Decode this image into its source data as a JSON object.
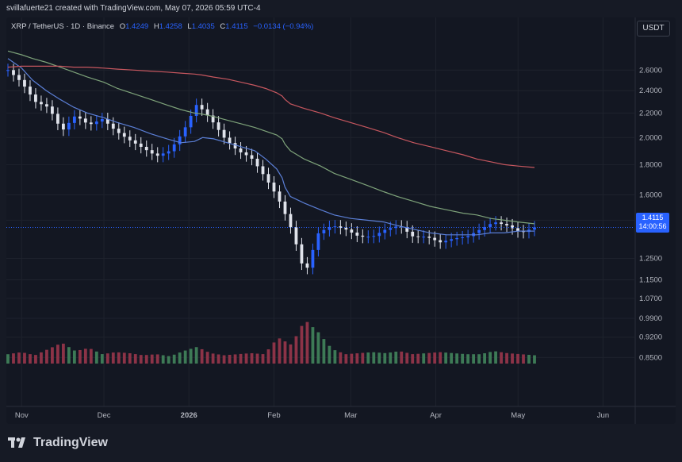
{
  "header": {
    "created_by": "svillafuerte21 created with TradingView.com, May 07, 2026 05:59 UTC-4"
  },
  "legend": {
    "symbol": "XRP / TetherUS · 1D · Binance",
    "o_label": "O",
    "o": "1.4249",
    "h_label": "H",
    "h": "1.4258",
    "l_label": "L",
    "l": "1.4035",
    "c_label": "C",
    "c": "1.4115",
    "change": "−0.0134 (−0.94%)"
  },
  "unit": "USDT",
  "price_tag": {
    "price": "1.4115",
    "countdown": "14:00:56"
  },
  "brand": {
    "name": "TradingView"
  },
  "colors": {
    "up": "#2962ff",
    "down": "#e0e3eb",
    "ma_blue": "#5b7fd6",
    "ma_green": "#7ea37a",
    "ma_red": "#c7575f",
    "vol_up": "#3d7a56",
    "vol_down": "#8c3347"
  },
  "chart_data": {
    "type": "candlestick",
    "title": "XRP / TetherUS · 1D · Binance",
    "y_scale": "log",
    "y_ticks": [
      "2.6000",
      "2.4000",
      "2.2000",
      "2.0000",
      "1.8000",
      "1.6000",
      "1.4500",
      "1.2500",
      "1.1500",
      "1.0700",
      "0.9900",
      "0.9200",
      "0.8500"
    ],
    "x_ticks": [
      "Nov",
      "Dec",
      "2026",
      "Feb",
      "Mar",
      "Apr",
      "May",
      "Jun"
    ],
    "grid": true,
    "price": {
      "x": [
        "2025-10-27",
        "2025-11-01",
        "2025-11-05",
        "2025-11-10",
        "2025-11-15",
        "2025-11-20",
        "2025-11-25",
        "2025-12-01",
        "2025-12-06",
        "2025-12-12",
        "2025-12-18",
        "2025-12-24",
        "2025-12-29",
        "2026-01-03",
        "2026-01-06",
        "2026-01-10",
        "2026-01-15",
        "2026-01-20",
        "2026-01-25",
        "2026-01-29",
        "2026-02-02",
        "2026-02-04",
        "2026-02-05",
        "2026-02-07",
        "2026-02-12",
        "2026-02-18",
        "2026-02-23",
        "2026-03-01",
        "2026-03-07",
        "2026-03-13",
        "2026-03-18",
        "2026-03-24",
        "2026-03-30",
        "2026-04-05",
        "2026-04-11",
        "2026-04-16",
        "2026-04-21",
        "2026-04-26",
        "2026-05-01",
        "2026-05-07"
      ],
      "close": [
        2.6,
        2.48,
        2.3,
        2.25,
        2.05,
        2.18,
        2.1,
        2.15,
        2.05,
        1.98,
        1.92,
        1.86,
        1.9,
        2.05,
        2.28,
        2.15,
        2.0,
        1.9,
        1.85,
        1.72,
        1.58,
        1.4,
        1.17,
        1.38,
        1.42,
        1.4,
        1.36,
        1.36,
        1.4,
        1.42,
        1.36,
        1.36,
        1.33,
        1.35,
        1.36,
        1.4,
        1.44,
        1.42,
        1.38,
        1.41
      ]
    },
    "series": [
      {
        "values": [
          2.72,
          2.62,
          2.5,
          2.4,
          2.32,
          2.25,
          2.2,
          2.16,
          2.12,
          2.08,
          2.03,
          1.99,
          1.96,
          1.97,
          2.0,
          1.99,
          1.96,
          1.93,
          1.9,
          1.84,
          1.77,
          1.71,
          1.65,
          1.59,
          1.55,
          1.51,
          1.48,
          1.46,
          1.45,
          1.44,
          1.42,
          1.4,
          1.38,
          1.37,
          1.37,
          1.37,
          1.38,
          1.38,
          1.39,
          1.39
        ]
      },
      {
        "values": [
          2.8,
          2.76,
          2.72,
          2.68,
          2.63,
          2.58,
          2.53,
          2.48,
          2.42,
          2.37,
          2.32,
          2.27,
          2.23,
          2.2,
          2.19,
          2.17,
          2.14,
          2.11,
          2.08,
          2.05,
          2.02,
          1.99,
          1.95,
          1.9,
          1.84,
          1.79,
          1.74,
          1.7,
          1.66,
          1.62,
          1.59,
          1.56,
          1.53,
          1.51,
          1.49,
          1.48,
          1.46,
          1.45,
          1.44,
          1.43
        ]
      },
      {
        "values": [
          2.63,
          2.64,
          2.64,
          2.64,
          2.64,
          2.63,
          2.63,
          2.62,
          2.61,
          2.6,
          2.59,
          2.58,
          2.57,
          2.56,
          2.55,
          2.53,
          2.51,
          2.48,
          2.45,
          2.42,
          2.38,
          2.35,
          2.32,
          2.28,
          2.24,
          2.2,
          2.16,
          2.12,
          2.08,
          2.04,
          2.0,
          1.96,
          1.93,
          1.9,
          1.87,
          1.84,
          1.82,
          1.8,
          1.79,
          1.78
        ]
      }
    ],
    "volume": [
      9,
      11,
      8,
      14,
      20,
      12,
      15,
      9,
      11,
      10,
      8,
      9,
      7,
      12,
      16,
      10,
      8,
      9,
      10,
      9,
      25,
      18,
      42,
      30,
      14,
      9,
      10,
      11,
      10,
      12,
      9,
      10,
      11,
      10,
      9,
      9,
      12,
      10,
      9,
      8
    ]
  }
}
